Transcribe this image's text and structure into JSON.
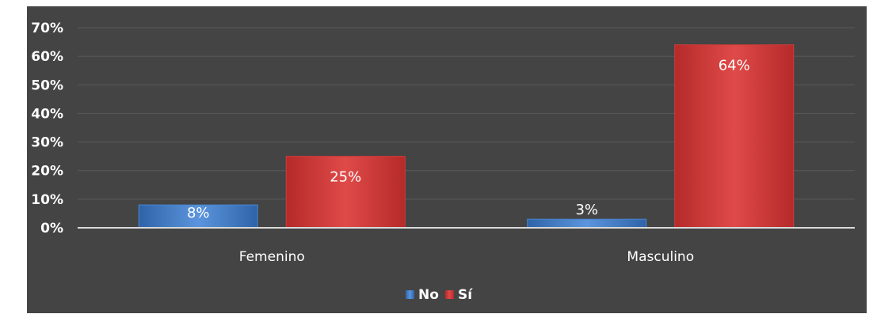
{
  "chart_data": {
    "type": "bar",
    "title": "",
    "xlabel": "",
    "ylabel": "",
    "categories": [
      "Femenino",
      "Masculino"
    ],
    "series": [
      {
        "name": "No",
        "values": [
          8,
          3
        ],
        "labels": [
          "8%",
          "3%"
        ],
        "color": "#4a86cf"
      },
      {
        "name": "Sí",
        "values": [
          25,
          64
        ],
        "labels": [
          "25%",
          "64%"
        ],
        "color": "#d63a3a"
      }
    ],
    "ylim": [
      0,
      70
    ],
    "yticks": [
      0,
      10,
      20,
      30,
      40,
      50,
      60,
      70
    ],
    "ytick_labels": [
      "0%",
      "10%",
      "20%",
      "30%",
      "40%",
      "50%",
      "60%",
      "70%"
    ],
    "grid": true,
    "legend_position": "bottom-center",
    "background": "#444444"
  }
}
